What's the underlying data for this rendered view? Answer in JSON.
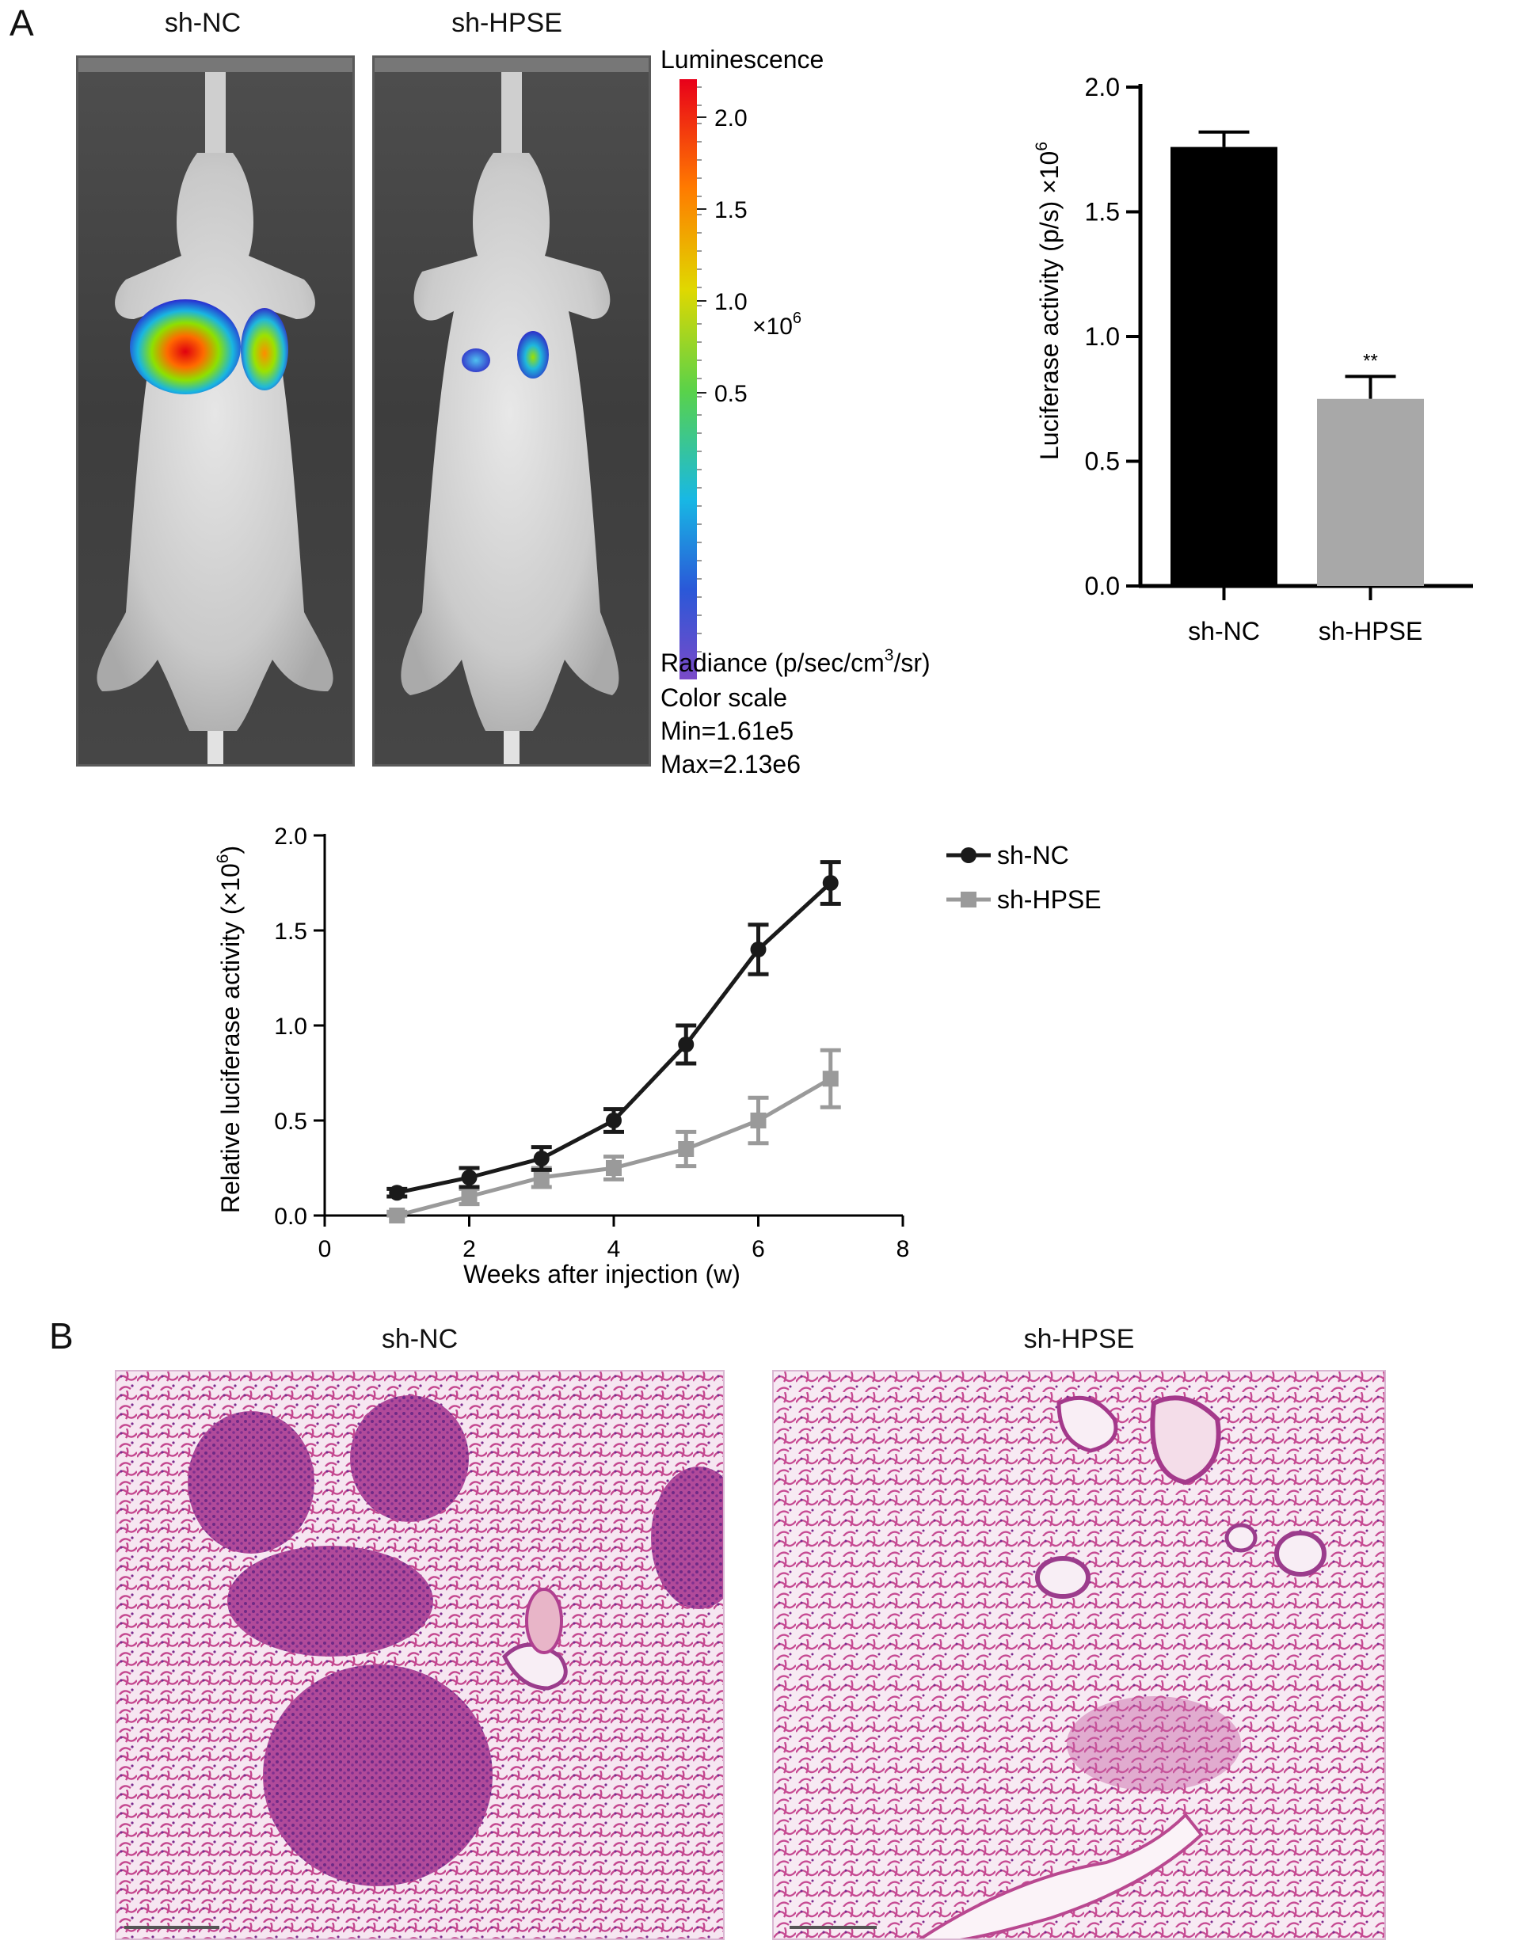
{
  "panels": {
    "a": {
      "letter": "A"
    },
    "b": {
      "letter": "B"
    }
  },
  "bioluminescence": {
    "images": [
      {
        "label": "sh-NC"
      },
      {
        "label": "sh-HPSE"
      }
    ],
    "scale": {
      "title": "Luminescence",
      "ticks": [
        "2.0",
        "1.5",
        "1.0",
        "0.5"
      ],
      "multiplier": "×10",
      "multiplier_exp": "6",
      "radiance_prefix": "Radiance (p/sec/cm",
      "radiance_exp": "3",
      "radiance_suffix": "/sr)",
      "color_scale_label": "Color scale",
      "min_label": "Min=1.61e5",
      "max_label": "Max=2.13e6"
    }
  },
  "bar_chart_labels": {
    "ylabel_main": "Luciferase activity (p/s) ×10",
    "ylabel_exp": "6",
    "significance": "**"
  },
  "line_chart_labels": {
    "ylabel_main": "Relative luciferase activity (×10",
    "ylabel_exp": "6",
    "ylabel_close": ")",
    "xlabel": "Weeks after injection (w)"
  },
  "histology": {
    "images": [
      {
        "label": "sh-NC"
      },
      {
        "label": "sh-HPSE"
      }
    ]
  },
  "colors": {
    "sh_nc_bar": "#000000",
    "sh_hpse_bar": "#a8a8a8",
    "sh_nc_line": "#1a1a1a",
    "sh_hpse_line": "#9a9a9a"
  },
  "chart_data": [
    {
      "type": "bar",
      "categories": [
        "sh-NC",
        "sh-HPSE"
      ],
      "values": [
        1.76,
        0.75
      ],
      "errors": [
        0.06,
        0.09
      ],
      "ylabel": "Luciferase activity (p/s) ×10^6",
      "ylim": [
        0,
        2.0
      ],
      "yticks": [
        "0.0",
        "0.5",
        "1.0",
        "1.5",
        "2.0"
      ],
      "annotations": [
        {
          "category": "sh-HPSE",
          "text": "**"
        }
      ],
      "grid": false
    },
    {
      "type": "line",
      "x": [
        1,
        2,
        3,
        4,
        5,
        6,
        7
      ],
      "series": [
        {
          "name": "sh-NC",
          "values": [
            0.12,
            0.2,
            0.3,
            0.5,
            0.9,
            1.4,
            1.75
          ],
          "errors": [
            0.02,
            0.05,
            0.06,
            0.06,
            0.1,
            0.13,
            0.11
          ],
          "marker": "circle"
        },
        {
          "name": "sh-HPSE",
          "values": [
            0.0,
            0.1,
            0.2,
            0.25,
            0.35,
            0.5,
            0.72
          ],
          "errors": [
            0.02,
            0.04,
            0.05,
            0.06,
            0.09,
            0.12,
            0.15
          ],
          "marker": "square"
        }
      ],
      "xlabel": "Weeks after injection (w)",
      "ylabel": "Relative luciferase activity (×10^6)",
      "xlim": [
        0,
        8
      ],
      "ylim": [
        0,
        2.0
      ],
      "xticks": [
        "0",
        "2",
        "4",
        "6",
        "8"
      ],
      "yticks": [
        "0.0",
        "0.5",
        "1.0",
        "1.5",
        "2.0"
      ],
      "legend": "top-right",
      "grid": false
    }
  ]
}
